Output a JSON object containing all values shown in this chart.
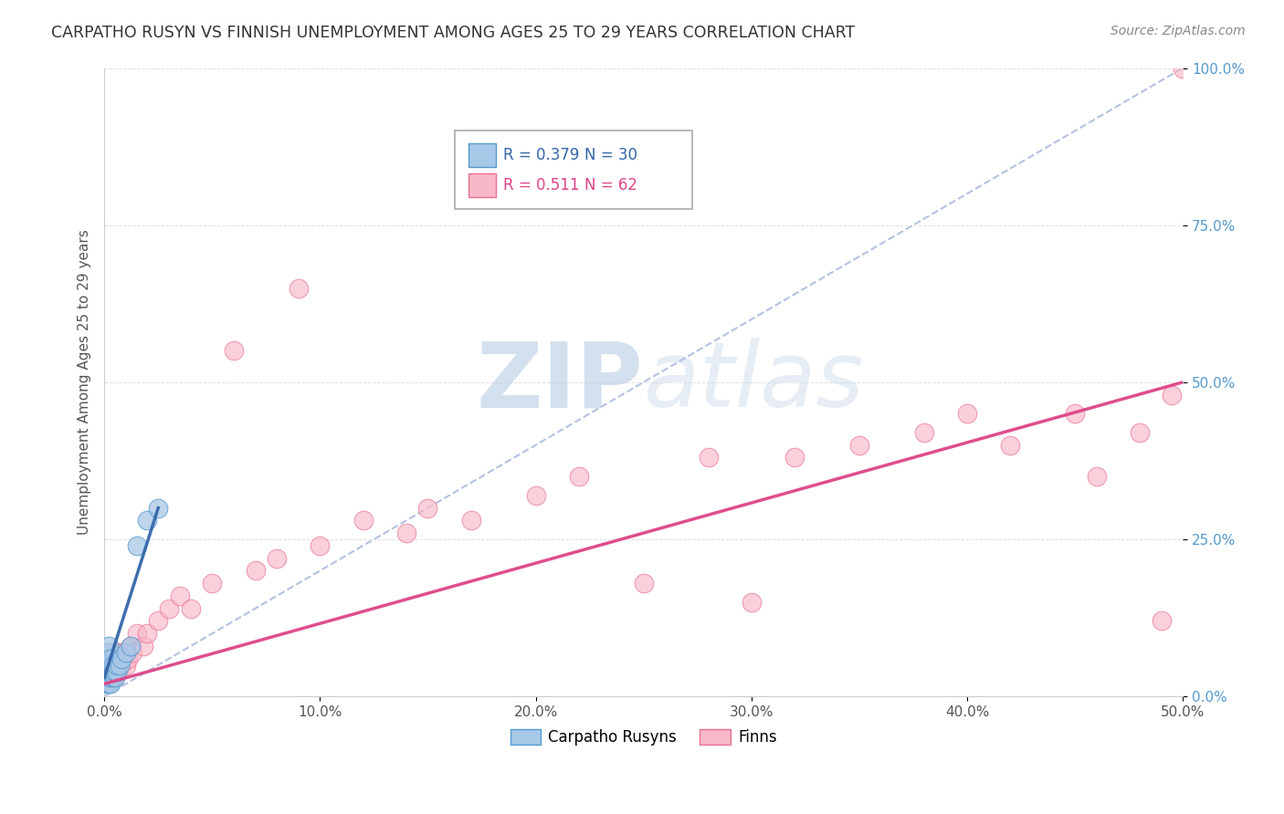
{
  "title": "CARPATHO RUSYN VS FINNISH UNEMPLOYMENT AMONG AGES 25 TO 29 YEARS CORRELATION CHART",
  "source": "Source: ZipAtlas.com",
  "ylabel_label": "Unemployment Among Ages 25 to 29 years",
  "xmin": 0.0,
  "xmax": 0.5,
  "ymin": 0.0,
  "ymax": 1.0,
  "xticks": [
    0.0,
    0.1,
    0.2,
    0.3,
    0.4,
    0.5
  ],
  "xtick_labels": [
    "0.0%",
    "10.0%",
    "20.0%",
    "30.0%",
    "40.0%",
    "50.0%"
  ],
  "yticks": [
    0.0,
    0.25,
    0.5,
    0.75,
    1.0
  ],
  "ytick_labels": [
    "0.0%",
    "25.0%",
    "50.0%",
    "75.0%",
    "100.0%"
  ],
  "legend_r1": "R = 0.379",
  "legend_n1": "N = 30",
  "legend_r2": "R = 0.511",
  "legend_n2": "N = 62",
  "blue_color": "#a8c8e8",
  "blue_edge_color": "#5599cc",
  "pink_color": "#f8b8c8",
  "pink_edge_color": "#e87090",
  "blue_line_color": "#3366aa",
  "pink_line_color": "#dd4488",
  "ref_line_color": "#aabbdd",
  "watermark_zip": "ZIP",
  "watermark_atlas": "atlas",
  "ytick_color": "#5599cc",
  "xtick_color": "#555555",
  "grid_color": "#dddddd",
  "carpatho_x": [
    0.001,
    0.001,
    0.001,
    0.001,
    0.002,
    0.002,
    0.002,
    0.002,
    0.002,
    0.002,
    0.002,
    0.003,
    0.003,
    0.003,
    0.003,
    0.003,
    0.004,
    0.004,
    0.004,
    0.005,
    0.005,
    0.006,
    0.006,
    0.007,
    0.008,
    0.01,
    0.012,
    0.015,
    0.02,
    0.025
  ],
  "carpatho_y": [
    0.02,
    0.03,
    0.04,
    0.05,
    0.02,
    0.03,
    0.04,
    0.05,
    0.06,
    0.07,
    0.08,
    0.02,
    0.03,
    0.04,
    0.05,
    0.06,
    0.03,
    0.04,
    0.05,
    0.03,
    0.04,
    0.04,
    0.05,
    0.05,
    0.06,
    0.07,
    0.08,
    0.24,
    0.28,
    0.3
  ],
  "finn_x": [
    0.001,
    0.001,
    0.001,
    0.002,
    0.002,
    0.002,
    0.002,
    0.003,
    0.003,
    0.003,
    0.003,
    0.004,
    0.004,
    0.004,
    0.005,
    0.005,
    0.005,
    0.006,
    0.006,
    0.007,
    0.007,
    0.008,
    0.008,
    0.009,
    0.01,
    0.01,
    0.011,
    0.012,
    0.013,
    0.015,
    0.018,
    0.02,
    0.025,
    0.03,
    0.035,
    0.04,
    0.05,
    0.06,
    0.07,
    0.08,
    0.09,
    0.1,
    0.12,
    0.14,
    0.15,
    0.17,
    0.2,
    0.22,
    0.25,
    0.28,
    0.3,
    0.32,
    0.35,
    0.38,
    0.4,
    0.42,
    0.45,
    0.46,
    0.48,
    0.49,
    0.495,
    0.5
  ],
  "finn_y": [
    0.03,
    0.04,
    0.05,
    0.03,
    0.04,
    0.05,
    0.06,
    0.03,
    0.04,
    0.05,
    0.06,
    0.04,
    0.05,
    0.06,
    0.03,
    0.05,
    0.07,
    0.04,
    0.06,
    0.05,
    0.07,
    0.05,
    0.07,
    0.06,
    0.05,
    0.07,
    0.06,
    0.08,
    0.07,
    0.1,
    0.08,
    0.1,
    0.12,
    0.14,
    0.16,
    0.14,
    0.18,
    0.55,
    0.2,
    0.22,
    0.65,
    0.24,
    0.28,
    0.26,
    0.3,
    0.28,
    0.32,
    0.35,
    0.18,
    0.38,
    0.15,
    0.38,
    0.4,
    0.42,
    0.45,
    0.4,
    0.45,
    0.35,
    0.42,
    0.12,
    0.48,
    1.0
  ]
}
